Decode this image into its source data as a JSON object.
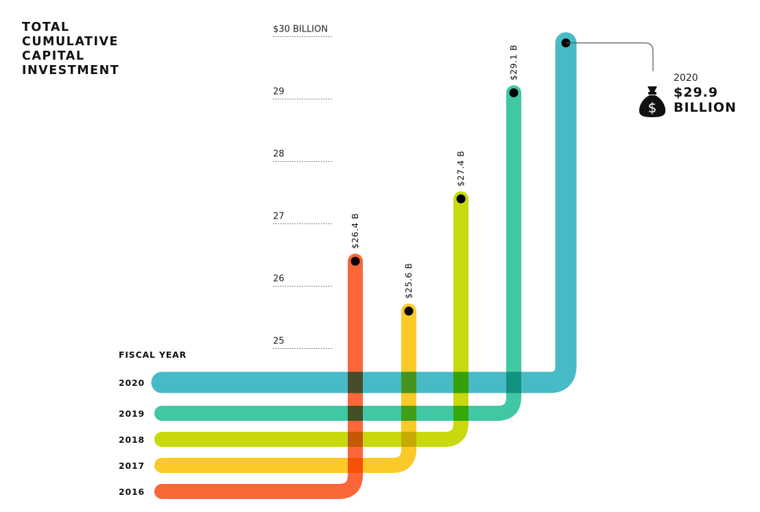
{
  "title_lines": [
    "TOTAL",
    "CUMULATIVE",
    "CAPITAL",
    "INVESTMENT"
  ],
  "callout": {
    "year": "2020",
    "value_lines": [
      "$29.9",
      "BILLION"
    ],
    "icon": "money-bag-icon",
    "dollar_glyph": "$"
  },
  "chart_data": {
    "type": "line",
    "title": "TOTAL CUMULATIVE CAPITAL INVESTMENT",
    "category_axis_title": "FISCAL YEAR",
    "ylim": [
      24.5,
      30
    ],
    "y_ticks": [
      {
        "value": 30,
        "label": "$30 BILLION"
      },
      {
        "value": 29,
        "label": "29"
      },
      {
        "value": 28,
        "label": "28"
      },
      {
        "value": 27,
        "label": "27"
      },
      {
        "value": 26,
        "label": "26"
      },
      {
        "value": 25,
        "label": "25"
      }
    ],
    "series": [
      {
        "year": "2016",
        "value": 26.4,
        "label": "$26.4 B",
        "color": "#fa5f2d"
      },
      {
        "year": "2017",
        "value": 25.6,
        "label": "$25.6 B",
        "color": "#fbc61c"
      },
      {
        "year": "2018",
        "value": 27.4,
        "label": "$27.4 B",
        "color": "#c5d700"
      },
      {
        "year": "2019",
        "value": 29.1,
        "label": "$29.1 B",
        "color": "#38c4a0"
      },
      {
        "year": "2020",
        "value": 29.9,
        "label": "$29.9 B",
        "color": "#3db8c2"
      }
    ]
  }
}
